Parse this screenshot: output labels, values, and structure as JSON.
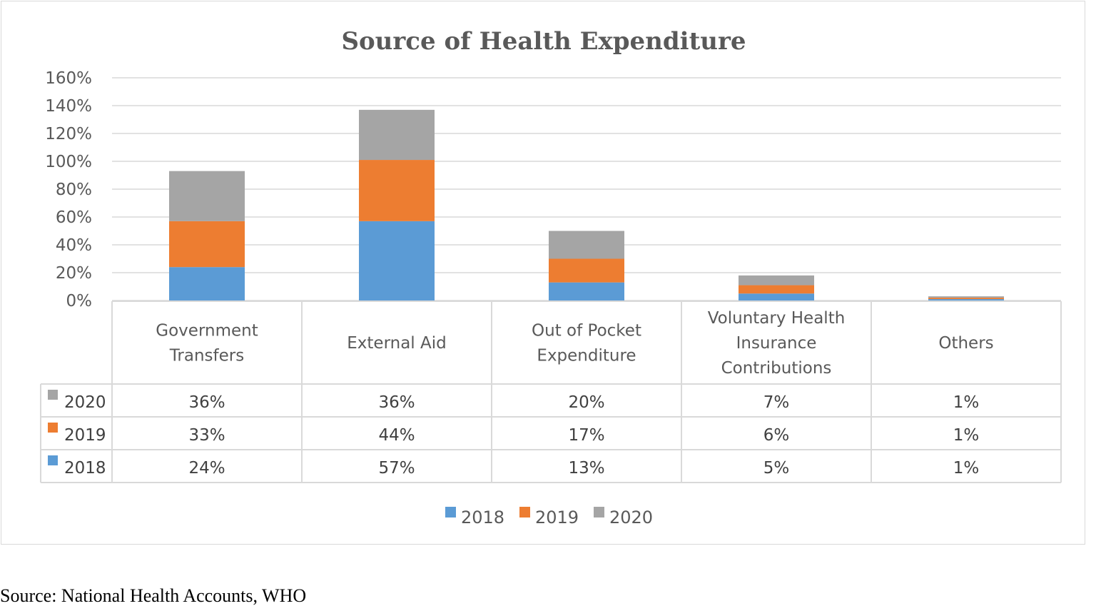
{
  "chart_data": {
    "type": "bar",
    "stacked": true,
    "title": "Source of  Health Expenditure",
    "categories": [
      [
        "Government",
        "Transfers"
      ],
      [
        "External Aid"
      ],
      [
        "Out of Pocket",
        "Expenditure"
      ],
      [
        "Voluntary Health",
        "Insurance",
        "Contributions"
      ],
      [
        "Others"
      ]
    ],
    "series": [
      {
        "name": "2018",
        "color": "#5b9bd5",
        "values": [
          24,
          57,
          13,
          5,
          1
        ],
        "labels": [
          "24%",
          "57%",
          "13%",
          "5%",
          "1%"
        ]
      },
      {
        "name": "2019",
        "color": "#ed7d31",
        "values": [
          33,
          44,
          17,
          6,
          1
        ],
        "labels": [
          "33%",
          "44%",
          "17%",
          "6%",
          "1%"
        ]
      },
      {
        "name": "2020",
        "color": "#a5a5a5",
        "values": [
          36,
          36,
          20,
          7,
          1
        ],
        "labels": [
          "36%",
          "36%",
          "20%",
          "7%",
          "1%"
        ]
      }
    ],
    "ylim": [
      0,
      160
    ],
    "yticks": [
      "0%",
      "20%",
      "40%",
      "60%",
      "80%",
      "100%",
      "120%",
      "140%",
      "160%"
    ],
    "grid": true,
    "data_table": true,
    "legend_position": "bottom"
  },
  "source_note": "Source: National Health Accounts, WHO"
}
